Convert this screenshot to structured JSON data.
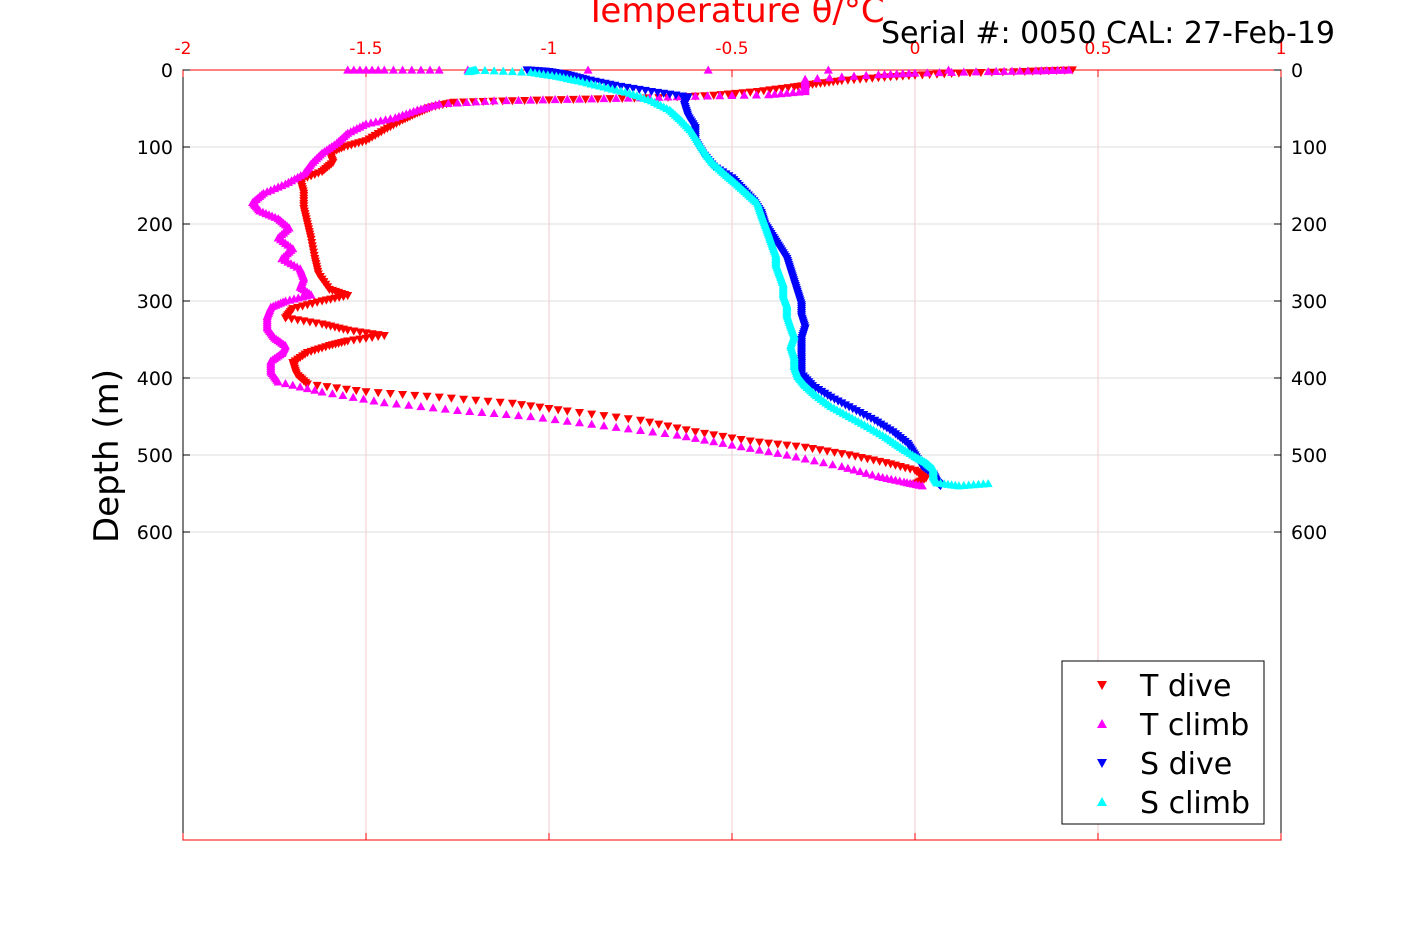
{
  "chart_data": {
    "type": "scatter",
    "title": "Temperature θ/°C",
    "annotation": "Serial #: 0050  CAL: 27-Feb-19",
    "xlabel": "Temperature θ/°C",
    "ylabel": "Depth (m)",
    "xlim": [
      -2,
      1
    ],
    "ylim": [
      0,
      1000
    ],
    "y_reversed": true,
    "x_ticks": [
      "-2",
      "-1.5",
      "-1",
      "-0.5",
      "0",
      "0.5",
      "1"
    ],
    "x_tick_values": [
      -2,
      -1.5,
      -1,
      -0.5,
      0,
      0.5,
      1
    ],
    "y_ticks": [
      "0",
      "100",
      "200",
      "300",
      "400",
      "500",
      "600"
    ],
    "y_tick_values": [
      0,
      100,
      200,
      300,
      400,
      500,
      600
    ],
    "grid": true,
    "legend_position": "bottom-right",
    "colors": {
      "axis_top": "#ff0000",
      "grid": "#f3c9cf",
      "t_dive": "#ff0000",
      "t_climb": "#ff00ff",
      "s_dive": "#0000ff",
      "s_climb": "#00ffff"
    },
    "series": [
      {
        "name": "T dive",
        "marker": "triangle-down",
        "color": "#ff0000",
        "points": [
          [
            0.43,
            0
          ],
          [
            0.3,
            2
          ],
          [
            0.12,
            4
          ],
          [
            0.0,
            7
          ],
          [
            -0.1,
            10
          ],
          [
            -0.2,
            14
          ],
          [
            -0.27,
            18
          ],
          [
            -0.33,
            22
          ],
          [
            -0.43,
            28
          ],
          [
            -0.55,
            33
          ],
          [
            -0.7,
            36
          ],
          [
            -0.9,
            38
          ],
          [
            -1.1,
            40
          ],
          [
            -1.26,
            42
          ],
          [
            -1.32,
            48
          ],
          [
            -1.36,
            56
          ],
          [
            -1.4,
            65
          ],
          [
            -1.45,
            78
          ],
          [
            -1.5,
            92
          ],
          [
            -1.56,
            100
          ],
          [
            -1.6,
            108
          ],
          [
            -1.59,
            120
          ],
          [
            -1.62,
            132
          ],
          [
            -1.68,
            143
          ],
          [
            -1.67,
            160
          ],
          [
            -1.67,
            180
          ],
          [
            -1.66,
            200
          ],
          [
            -1.65,
            220
          ],
          [
            -1.64,
            245
          ],
          [
            -1.63,
            265
          ],
          [
            -1.6,
            285
          ],
          [
            -1.55,
            293
          ],
          [
            -1.62,
            300
          ],
          [
            -1.7,
            310
          ],
          [
            -1.72,
            322
          ],
          [
            -1.62,
            330
          ],
          [
            -1.55,
            338
          ],
          [
            -1.45,
            345
          ],
          [
            -1.55,
            352
          ],
          [
            -1.6,
            358
          ],
          [
            -1.66,
            367
          ],
          [
            -1.7,
            380
          ],
          [
            -1.69,
            395
          ],
          [
            -1.66,
            408
          ],
          [
            -1.5,
            418
          ],
          [
            -1.3,
            425
          ],
          [
            -1.1,
            433
          ],
          [
            -0.95,
            443
          ],
          [
            -0.75,
            455
          ],
          [
            -0.6,
            470
          ],
          [
            -0.45,
            482
          ],
          [
            -0.3,
            490
          ],
          [
            -0.18,
            500
          ],
          [
            -0.08,
            510
          ],
          [
            0.0,
            520
          ],
          [
            0.03,
            530
          ],
          [
            0.0,
            538
          ]
        ]
      },
      {
        "name": "T climb",
        "marker": "triangle-up",
        "color": "#ff00ff",
        "points": [
          [
            0.02,
            540
          ],
          [
            -0.03,
            535
          ],
          [
            -0.1,
            528
          ],
          [
            -0.2,
            515
          ],
          [
            -0.35,
            500
          ],
          [
            -0.5,
            487
          ],
          [
            -0.65,
            474
          ],
          [
            -0.85,
            462
          ],
          [
            -1.05,
            450
          ],
          [
            -1.25,
            442
          ],
          [
            -1.45,
            432
          ],
          [
            -1.62,
            418
          ],
          [
            -1.74,
            405
          ],
          [
            -1.76,
            392
          ],
          [
            -1.76,
            378
          ],
          [
            -1.73,
            368
          ],
          [
            -1.72,
            358
          ],
          [
            -1.75,
            348
          ],
          [
            -1.77,
            335
          ],
          [
            -1.77,
            320
          ],
          [
            -1.76,
            308
          ],
          [
            -1.72,
            300
          ],
          [
            -1.65,
            292
          ],
          [
            -1.68,
            282
          ],
          [
            -1.67,
            270
          ],
          [
            -1.68,
            258
          ],
          [
            -1.73,
            245
          ],
          [
            -1.7,
            232
          ],
          [
            -1.74,
            218
          ],
          [
            -1.71,
            205
          ],
          [
            -1.74,
            193
          ],
          [
            -1.79,
            183
          ],
          [
            -1.81,
            172
          ],
          [
            -1.78,
            160
          ],
          [
            -1.72,
            148
          ],
          [
            -1.67,
            135
          ],
          [
            -1.65,
            122
          ],
          [
            -1.62,
            108
          ],
          [
            -1.58,
            95
          ],
          [
            -1.55,
            82
          ],
          [
            -1.5,
            70
          ],
          [
            -1.42,
            62
          ],
          [
            -1.36,
            52
          ],
          [
            -1.3,
            44
          ],
          [
            -1.15,
            40
          ],
          [
            -0.95,
            38
          ],
          [
            -0.75,
            36
          ],
          [
            -0.6,
            34
          ],
          [
            -0.4,
            32
          ],
          [
            -0.3,
            28
          ],
          [
            -0.3,
            18
          ],
          [
            -0.3,
            12
          ],
          [
            -0.1,
            6
          ],
          [
            0.0,
            4
          ],
          [
            0.2,
            2
          ],
          [
            0.33,
            1
          ],
          [
            0.42,
            0
          ],
          [
            -1.55,
            0
          ],
          [
            -1.45,
            0
          ],
          [
            -1.3,
            0
          ]
        ]
      },
      {
        "name": "S dive",
        "marker": "triangle-down",
        "color": "#0000ff",
        "points": [
          [
            -1.06,
            0
          ],
          [
            -1.0,
            2
          ],
          [
            -0.95,
            6
          ],
          [
            -0.9,
            12
          ],
          [
            -0.82,
            20
          ],
          [
            -0.72,
            28
          ],
          [
            -0.62,
            35
          ],
          [
            -0.63,
            45
          ],
          [
            -0.62,
            60
          ],
          [
            -0.6,
            75
          ],
          [
            -0.6,
            92
          ],
          [
            -0.58,
            108
          ],
          [
            -0.55,
            125
          ],
          [
            -0.5,
            140
          ],
          [
            -0.47,
            155
          ],
          [
            -0.44,
            170
          ],
          [
            -0.42,
            185
          ],
          [
            -0.41,
            200
          ],
          [
            -0.39,
            215
          ],
          [
            -0.37,
            230
          ],
          [
            -0.35,
            245
          ],
          [
            -0.34,
            260
          ],
          [
            -0.33,
            275
          ],
          [
            -0.32,
            290
          ],
          [
            -0.31,
            305
          ],
          [
            -0.31,
            320
          ],
          [
            -0.3,
            335
          ],
          [
            -0.31,
            350
          ],
          [
            -0.31,
            365
          ],
          [
            -0.31,
            380
          ],
          [
            -0.31,
            395
          ],
          [
            -0.28,
            410
          ],
          [
            -0.23,
            425
          ],
          [
            -0.17,
            440
          ],
          [
            -0.11,
            455
          ],
          [
            -0.06,
            470
          ],
          [
            -0.02,
            485
          ],
          [
            0.0,
            500
          ],
          [
            0.02,
            515
          ],
          [
            0.05,
            525
          ],
          [
            0.06,
            535
          ],
          [
            0.07,
            540
          ]
        ]
      },
      {
        "name": "S climb",
        "marker": "triangle-up",
        "color": "#00ffff",
        "points": [
          [
            0.2,
            537
          ],
          [
            0.12,
            540
          ],
          [
            0.06,
            536
          ],
          [
            0.05,
            528
          ],
          [
            0.05,
            518
          ],
          [
            0.03,
            510
          ],
          [
            0.0,
            502
          ],
          [
            -0.04,
            490
          ],
          [
            -0.08,
            477
          ],
          [
            -0.13,
            463
          ],
          [
            -0.18,
            450
          ],
          [
            -0.23,
            437
          ],
          [
            -0.27,
            423
          ],
          [
            -0.3,
            410
          ],
          [
            -0.32,
            398
          ],
          [
            -0.33,
            385
          ],
          [
            -0.33,
            372
          ],
          [
            -0.34,
            358
          ],
          [
            -0.33,
            345
          ],
          [
            -0.34,
            332
          ],
          [
            -0.35,
            318
          ],
          [
            -0.35,
            305
          ],
          [
            -0.36,
            292
          ],
          [
            -0.36,
            278
          ],
          [
            -0.37,
            265
          ],
          [
            -0.38,
            252
          ],
          [
            -0.38,
            240
          ],
          [
            -0.39,
            227
          ],
          [
            -0.4,
            213
          ],
          [
            -0.41,
            200
          ],
          [
            -0.42,
            187
          ],
          [
            -0.43,
            173
          ],
          [
            -0.46,
            160
          ],
          [
            -0.49,
            147
          ],
          [
            -0.52,
            135
          ],
          [
            -0.55,
            122
          ],
          [
            -0.57,
            110
          ],
          [
            -0.59,
            95
          ],
          [
            -0.61,
            80
          ],
          [
            -0.64,
            65
          ],
          [
            -0.67,
            52
          ],
          [
            -0.72,
            40
          ],
          [
            -0.78,
            30
          ],
          [
            -0.85,
            22
          ],
          [
            -0.92,
            14
          ],
          [
            -0.98,
            8
          ],
          [
            -1.05,
            3
          ],
          [
            -1.2,
            0
          ],
          [
            -1.22,
            2
          ]
        ]
      }
    ]
  }
}
